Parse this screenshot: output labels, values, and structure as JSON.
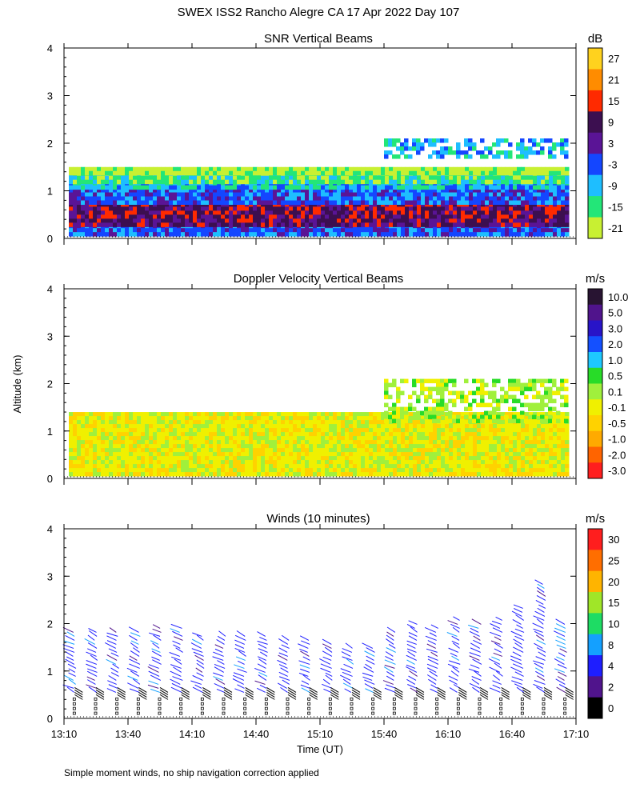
{
  "figure": {
    "title": "SWEX ISS2 Rancho Alegre CA  17 Apr 2022 Day 107",
    "ylabel": "Altitude (km)",
    "xlabel": "Time (UT)",
    "footnote": "Simple moment winds, no ship navigation correction applied",
    "x_ticks": [
      "13:10",
      "13:40",
      "14:10",
      "14:40",
      "15:10",
      "15:40",
      "16:10",
      "16:40",
      "17:10"
    ],
    "y_ticks": [
      "0",
      "1",
      "2",
      "3",
      "4"
    ]
  },
  "chart_data": [
    {
      "type": "heatmap",
      "title": "SNR Vertical Beams",
      "colorbar_unit": "dB",
      "colorbar_ticks": [
        "27",
        "21",
        "15",
        "9",
        "3",
        "-3",
        "-9",
        "-15",
        "-21"
      ],
      "colorbar_colors": [
        "#ffd21e",
        "#ff8c00",
        "#ff2a00",
        "#3c0f50",
        "#5a1496",
        "#1446ff",
        "#1ebeff",
        "#23e678",
        "#c8f032"
      ],
      "xlim": [
        "13:10",
        "17:10"
      ],
      "ylim": [
        0,
        4
      ],
      "layers": [
        {
          "alt_range": [
            0.1,
            0.3
          ],
          "snr_db": -6
        },
        {
          "alt_range": [
            0.3,
            0.75
          ],
          "snr_db": 7
        },
        {
          "alt_range": [
            0.75,
            1.05
          ],
          "snr_db": -1
        },
        {
          "alt_range": [
            1.05,
            1.2
          ],
          "snr_db": -8
        },
        {
          "alt_range": [
            1.2,
            1.4
          ],
          "snr_db": -15
        },
        {
          "alt_range": [
            1.4,
            1.5
          ],
          "snr_db": -20
        }
      ],
      "upper_layer": {
        "time_range": [
          "15:40",
          "17:10"
        ],
        "alt_range": [
          1.7,
          2.1
        ],
        "snr_db": -12
      }
    },
    {
      "type": "heatmap",
      "title": "Doppler Velocity Vertical Beams",
      "colorbar_unit": "m/s",
      "colorbar_ticks": [
        "10.0",
        "5.0",
        "3.0",
        "2.0",
        "1.0",
        "0.5",
        "0.1",
        "-0.1",
        "-0.5",
        "-1.0",
        "-2.0",
        "-3.0"
      ],
      "colorbar_colors": [
        "#281432",
        "#50148c",
        "#2814c8",
        "#1450ff",
        "#1ec8ff",
        "#28dc28",
        "#a0f03c",
        "#f0f000",
        "#ffd200",
        "#ffaa00",
        "#ff6400",
        "#ff1e1e"
      ],
      "xlim": [
        "13:10",
        "17:10"
      ],
      "ylim": [
        0,
        4
      ],
      "layers": [
        {
          "alt_range": [
            0.1,
            1.4
          ],
          "velocity_ms": -0.2
        }
      ],
      "upper_layer": {
        "time_range": [
          "15:40",
          "17:10"
        ],
        "alt_range": [
          1.2,
          2.1
        ],
        "velocity_ms": 0.1
      }
    },
    {
      "type": "scatter",
      "title": "Winds (10 minutes)",
      "colorbar_unit": "m/s",
      "colorbar_ticks": [
        "30",
        "25",
        "20",
        "15",
        "10",
        "8",
        "4",
        "2",
        "0"
      ],
      "colorbar_colors": [
        "#ff1e1e",
        "#ff6e00",
        "#ffb400",
        "#a0e628",
        "#1edc64",
        "#14a0ff",
        "#1e1eff",
        "#50148c",
        "#000000"
      ],
      "xlim": [
        "13:10",
        "17:10"
      ],
      "ylim": [
        0,
        4
      ],
      "profiles": [
        {
          "time": "13:15",
          "top_km": 1.9
        },
        {
          "time": "13:25",
          "top_km": 1.85
        },
        {
          "time": "13:35",
          "top_km": 1.9
        },
        {
          "time": "13:45",
          "top_km": 1.9
        },
        {
          "time": "13:55",
          "top_km": 1.95
        },
        {
          "time": "14:05",
          "top_km": 1.95
        },
        {
          "time": "14:15",
          "top_km": 1.8
        },
        {
          "time": "14:25",
          "top_km": 1.8
        },
        {
          "time": "14:35",
          "top_km": 1.75
        },
        {
          "time": "14:45",
          "top_km": 1.75
        },
        {
          "time": "14:55",
          "top_km": 1.7
        },
        {
          "time": "15:05",
          "top_km": 1.65
        },
        {
          "time": "15:15",
          "top_km": 1.6
        },
        {
          "time": "15:25",
          "top_km": 1.5
        },
        {
          "time": "15:35",
          "top_km": 1.5
        },
        {
          "time": "15:45",
          "top_km": 1.9
        },
        {
          "time": "15:55",
          "top_km": 2.05
        },
        {
          "time": "16:05",
          "top_km": 1.95
        },
        {
          "time": "16:15",
          "top_km": 2.1
        },
        {
          "time": "16:25",
          "top_km": 2.0
        },
        {
          "time": "16:35",
          "top_km": 2.1
        },
        {
          "time": "16:45",
          "top_km": 2.35
        },
        {
          "time": "16:55",
          "top_km": 2.9
        },
        {
          "time": "17:05",
          "top_km": 2.0
        }
      ]
    }
  ]
}
